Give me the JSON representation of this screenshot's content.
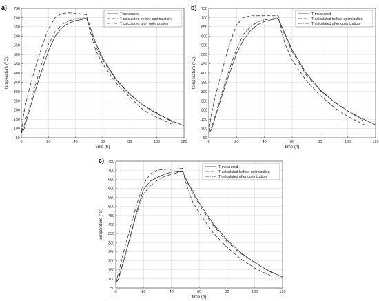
{
  "chart_data": [
    {
      "type": "line",
      "panel_label": "a)",
      "xlabel": "time (h)",
      "ylabel": "temperature (°C)",
      "xlim": [
        0,
        120
      ],
      "ylim": [
        50,
        750
      ],
      "xticks": [
        0,
        20,
        40,
        60,
        80,
        100,
        120
      ],
      "yticks": [
        50,
        100,
        150,
        200,
        250,
        300,
        350,
        400,
        450,
        500,
        550,
        600,
        650,
        700,
        750
      ],
      "grid": true,
      "legend_position": "top-right",
      "series": [
        {
          "name": "T measured",
          "style": "solid",
          "x": [
            0,
            2,
            5,
            10,
            15,
            20,
            25,
            30,
            35,
            40,
            45,
            48,
            50,
            55,
            60,
            70,
            80,
            90,
            100,
            110,
            120
          ],
          "y": [
            75,
            95,
            175,
            300,
            410,
            520,
            600,
            645,
            670,
            683,
            690,
            695,
            665,
            560,
            480,
            365,
            285,
            225,
            180,
            145,
            115
          ]
        },
        {
          "name": "T calculated before optimization",
          "style": "dashed",
          "x": [
            0,
            2,
            5,
            10,
            15,
            20,
            25,
            30,
            35,
            40,
            45,
            48,
            50,
            55,
            60,
            70,
            80,
            90,
            100,
            112
          ],
          "y": [
            80,
            190,
            290,
            420,
            540,
            640,
            700,
            722,
            725,
            722,
            718,
            715,
            645,
            520,
            450,
            345,
            270,
            200,
            160,
            120
          ]
        },
        {
          "name": "T calculated after optimization",
          "style": "dashdot",
          "x": [
            0,
            2,
            5,
            10,
            15,
            20,
            25,
            30,
            35,
            40,
            45,
            48,
            50,
            55,
            60,
            70,
            80,
            90,
            100,
            112
          ],
          "y": [
            80,
            115,
            195,
            325,
            450,
            555,
            625,
            662,
            683,
            692,
            697,
            698,
            655,
            545,
            470,
            360,
            285,
            225,
            185,
            132
          ]
        }
      ]
    },
    {
      "type": "line",
      "panel_label": "b)",
      "xlabel": "time (h)",
      "ylabel": "temperature (°C)",
      "xlim": [
        0,
        120
      ],
      "ylim": [
        50,
        750
      ],
      "xticks": [
        0,
        20,
        40,
        60,
        80,
        100,
        120
      ],
      "yticks": [
        50,
        100,
        150,
        200,
        250,
        300,
        350,
        400,
        450,
        500,
        550,
        600,
        650,
        700,
        750
      ],
      "grid": true,
      "legend_position": "top-right",
      "series": [
        {
          "name": "T measured",
          "style": "solid",
          "x": [
            0,
            2,
            5,
            10,
            15,
            20,
            25,
            30,
            35,
            40,
            45,
            50,
            52,
            55,
            60,
            70,
            80,
            90,
            100,
            110,
            120
          ],
          "y": [
            75,
            95,
            170,
            290,
            400,
            505,
            580,
            630,
            660,
            678,
            688,
            695,
            660,
            610,
            525,
            400,
            310,
            245,
            195,
            155,
            120
          ]
        },
        {
          "name": "T calculated before optimization",
          "style": "dashed",
          "x": [
            0,
            2,
            5,
            10,
            15,
            20,
            25,
            30,
            35,
            40,
            45,
            50,
            52,
            55,
            60,
            70,
            80,
            90,
            100,
            112
          ],
          "y": [
            80,
            185,
            285,
            425,
            560,
            660,
            700,
            710,
            710,
            710,
            710,
            710,
            630,
            555,
            470,
            360,
            280,
            215,
            165,
            120
          ]
        },
        {
          "name": "T calculated after optimization",
          "style": "dashdot",
          "x": [
            0,
            2,
            5,
            10,
            15,
            20,
            25,
            30,
            35,
            40,
            45,
            50,
            52,
            55,
            60,
            70,
            80,
            90,
            100,
            112
          ],
          "y": [
            80,
            110,
            185,
            305,
            425,
            530,
            610,
            650,
            675,
            688,
            693,
            697,
            650,
            600,
            515,
            390,
            305,
            245,
            195,
            140
          ]
        }
      ]
    },
    {
      "type": "line",
      "panel_label": "c)",
      "xlabel": "time (h)",
      "ylabel": "temperature (°C)",
      "xlim": [
        0,
        120
      ],
      "ylim": [
        50,
        750
      ],
      "xticks": [
        0,
        20,
        40,
        60,
        80,
        100,
        120
      ],
      "yticks": [
        50,
        100,
        150,
        200,
        250,
        300,
        350,
        400,
        450,
        500,
        550,
        600,
        650,
        700,
        750
      ],
      "grid": true,
      "legend_position": "top-right",
      "series": [
        {
          "name": "T measured",
          "style": "solid",
          "x": [
            0,
            2,
            5,
            10,
            15,
            20,
            25,
            30,
            35,
            40,
            45,
            48,
            50,
            55,
            60,
            70,
            80,
            90,
            100,
            110,
            120
          ],
          "y": [
            75,
            100,
            180,
            320,
            470,
            595,
            640,
            660,
            678,
            690,
            695,
            695,
            660,
            590,
            520,
            405,
            315,
            245,
            190,
            145,
            110
          ]
        },
        {
          "name": "T calculated before optimization",
          "style": "dashed",
          "x": [
            0,
            2,
            5,
            10,
            15,
            20,
            25,
            30,
            35,
            40,
            45,
            48,
            50,
            55,
            60,
            70,
            80,
            90,
            100,
            112
          ],
          "y": [
            80,
            135,
            230,
            370,
            510,
            625,
            680,
            700,
            705,
            705,
            708,
            710,
            640,
            530,
            465,
            355,
            275,
            210,
            160,
            115
          ]
        },
        {
          "name": "T calculated after optimization",
          "style": "dashdot",
          "x": [
            0,
            2,
            5,
            10,
            15,
            20,
            25,
            30,
            35,
            40,
            45,
            48,
            50,
            55,
            60,
            70,
            80,
            90,
            100,
            112
          ],
          "y": [
            80,
            110,
            190,
            320,
            460,
            570,
            615,
            645,
            665,
            678,
            688,
            695,
            655,
            580,
            510,
            395,
            305,
            240,
            190,
            135
          ]
        }
      ]
    }
  ]
}
